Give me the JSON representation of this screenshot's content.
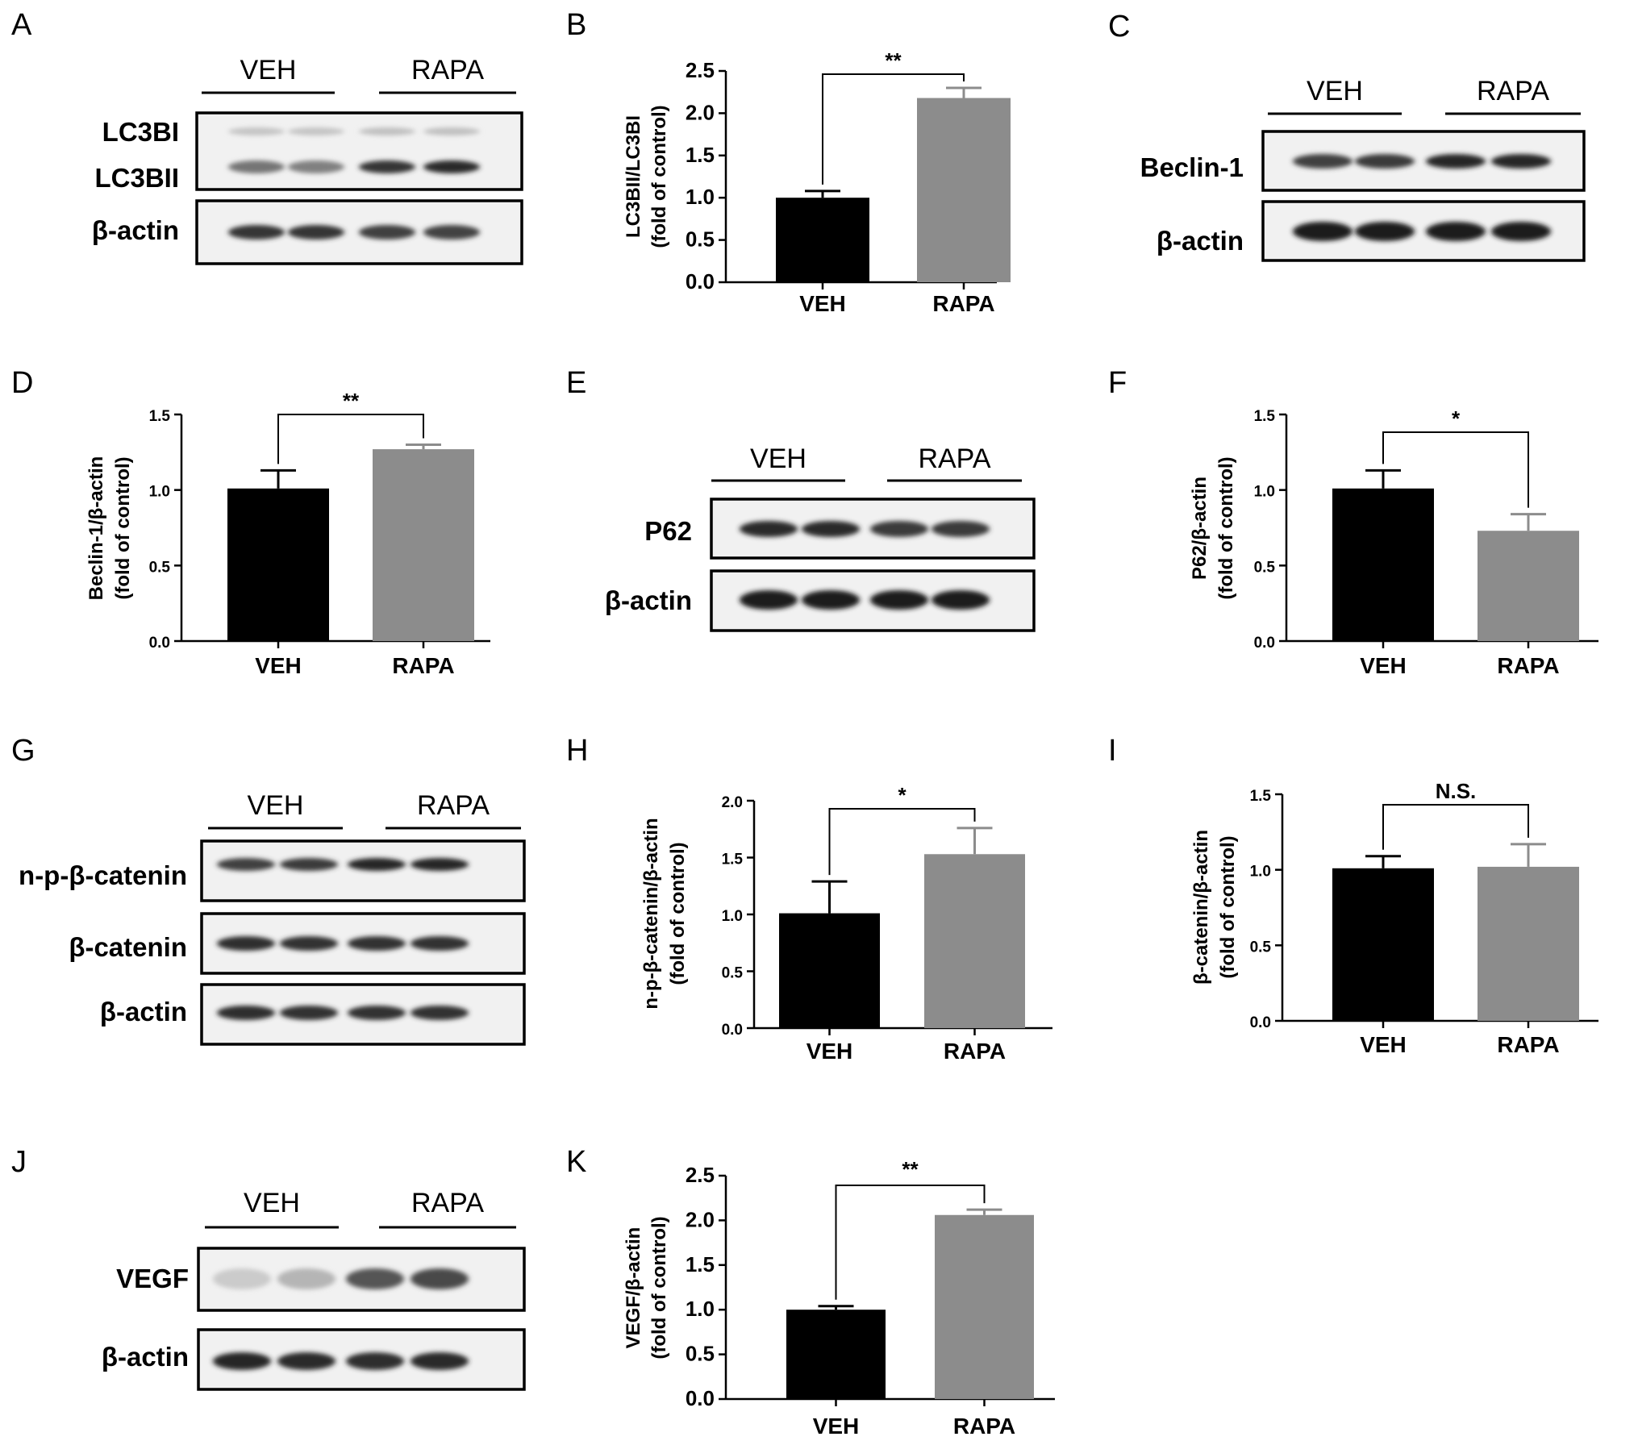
{
  "panel_letters": [
    "A",
    "B",
    "C",
    "D",
    "E",
    "F",
    "G",
    "H",
    "I",
    "J",
    "K"
  ],
  "blots": [
    {
      "id": "A",
      "groups": [
        "VEH",
        "RAPA"
      ],
      "rows": [
        {
          "labels": [
            "LC3BI",
            "LC3BII"
          ],
          "bands": [
            {
              "label": "LC3BI",
              "intensity": [
                0.18,
                0.18,
                0.2,
                0.2
              ]
            },
            {
              "label": "LC3BII",
              "intensity": [
                0.55,
                0.5,
                0.85,
                0.9
              ]
            }
          ]
        },
        {
          "labels": [
            "β-actin"
          ],
          "bands": [
            {
              "label": "β-actin",
              "intensity": [
                0.85,
                0.85,
                0.8,
                0.78
              ]
            }
          ]
        }
      ]
    },
    {
      "id": "C",
      "groups": [
        "VEH",
        "RAPA"
      ],
      "rows": [
        {
          "labels": [
            "Beclin-1"
          ],
          "bands": [
            {
              "label": "Beclin-1",
              "intensity": [
                0.8,
                0.82,
                0.92,
                0.92
              ]
            }
          ]
        },
        {
          "labels": [
            "β-actin"
          ],
          "bands": [
            {
              "label": "β-actin",
              "intensity": [
                0.95,
                0.95,
                0.95,
                0.95
              ]
            }
          ]
        }
      ]
    },
    {
      "id": "E",
      "groups": [
        "VEH",
        "RAPA"
      ],
      "rows": [
        {
          "labels": [
            "P62"
          ],
          "bands": [
            {
              "label": "P62",
              "intensity": [
                0.9,
                0.9,
                0.82,
                0.82
              ]
            }
          ]
        },
        {
          "labels": [
            "β-actin"
          ],
          "bands": [
            {
              "label": "β-actin",
              "intensity": [
                0.95,
                0.95,
                0.95,
                0.95
              ]
            }
          ]
        }
      ]
    },
    {
      "id": "G",
      "groups": [
        "VEH",
        "RAPA"
      ],
      "rows": [
        {
          "labels": [
            "n-p-β-catenin"
          ],
          "bands": [
            {
              "label": "n-p-β-catenin",
              "intensity": [
                0.8,
                0.82,
                0.92,
                0.92
              ]
            }
          ]
        },
        {
          "labels": [
            "β-catenin"
          ],
          "bands": [
            {
              "label": "β-catenin",
              "intensity": [
                0.88,
                0.86,
                0.86,
                0.86
              ]
            }
          ]
        },
        {
          "labels": [
            "β-actin"
          ],
          "bands": [
            {
              "label": "β-actin",
              "intensity": [
                0.88,
                0.86,
                0.86,
                0.86
              ]
            }
          ]
        }
      ]
    },
    {
      "id": "J",
      "groups": [
        "VEH",
        "RAPA"
      ],
      "rows": [
        {
          "labels": [
            "VEGF"
          ],
          "bands": [
            {
              "label": "VEGF",
              "intensity": [
                0.15,
                0.25,
                0.7,
                0.75
              ]
            }
          ]
        },
        {
          "labels": [
            "β-actin"
          ],
          "bands": [
            {
              "label": "β-actin",
              "intensity": [
                0.92,
                0.9,
                0.88,
                0.9
              ]
            }
          ]
        }
      ]
    }
  ],
  "chart_data": [
    {
      "id": "B",
      "type": "bar",
      "categories": [
        "VEH",
        "RAPA"
      ],
      "values": [
        1.0,
        2.18
      ],
      "errors": [
        0.08,
        0.12
      ],
      "colors": [
        "#000000",
        "#8c8c8c"
      ],
      "ylabel": [
        "LC3BII/LC3BI",
        "(fold of control)"
      ],
      "ylim": [
        0,
        2.5
      ],
      "yticks": [
        "0.0",
        "0.5",
        "1.0",
        "1.5",
        "2.0",
        "2.5"
      ],
      "significance": "**"
    },
    {
      "id": "D",
      "type": "bar",
      "categories": [
        "VEH",
        "RAPA"
      ],
      "values": [
        1.01,
        1.27
      ],
      "errors": [
        0.12,
        0.03
      ],
      "colors": [
        "#000000",
        "#8c8c8c"
      ],
      "ylabel": [
        "Beclin-1/β-actin",
        "(fold of control)"
      ],
      "ylim": [
        0,
        1.5
      ],
      "yticks": [
        "0.0",
        "0.5",
        "1.0",
        "1.5"
      ],
      "significance": "**"
    },
    {
      "id": "F",
      "type": "bar",
      "categories": [
        "VEH",
        "RAPA"
      ],
      "values": [
        1.01,
        0.73
      ],
      "errors": [
        0.12,
        0.11
      ],
      "colors": [
        "#000000",
        "#8c8c8c"
      ],
      "ylabel": [
        "P62/β-actin",
        "(fold of control)"
      ],
      "ylim": [
        0,
        1.5
      ],
      "yticks": [
        "0.0",
        "0.5",
        "1.0",
        "1.5"
      ],
      "significance": "*"
    },
    {
      "id": "H",
      "type": "bar",
      "categories": [
        "VEH",
        "RAPA"
      ],
      "values": [
        1.01,
        1.53
      ],
      "errors": [
        0.28,
        0.23
      ],
      "colors": [
        "#000000",
        "#8c8c8c"
      ],
      "ylabel": [
        "n-p-β-catenin/β-actin",
        "(fold of control)"
      ],
      "ylim": [
        0,
        2.0
      ],
      "yticks": [
        "0.0",
        "0.5",
        "1.0",
        "1.5",
        "2.0"
      ],
      "significance": "*"
    },
    {
      "id": "I",
      "type": "bar",
      "categories": [
        "VEH",
        "RAPA"
      ],
      "values": [
        1.01,
        1.02
      ],
      "errors": [
        0.08,
        0.15
      ],
      "colors": [
        "#000000",
        "#8c8c8c"
      ],
      "ylabel": [
        "β-catenin/β-actin",
        "(fold of control)"
      ],
      "ylim": [
        0,
        1.5
      ],
      "yticks": [
        "0.0",
        "0.5",
        "1.0",
        "1.5"
      ],
      "significance": "N.S."
    },
    {
      "id": "K",
      "type": "bar",
      "categories": [
        "VEH",
        "RAPA"
      ],
      "values": [
        1.0,
        2.06
      ],
      "errors": [
        0.04,
        0.06
      ],
      "colors": [
        "#000000",
        "#8c8c8c"
      ],
      "ylabel": [
        "VEGF/β-actin",
        "(fold of control)"
      ],
      "ylim": [
        0,
        2.5
      ],
      "yticks": [
        "0.0",
        "0.5",
        "1.0",
        "1.5",
        "2.0",
        "2.5"
      ],
      "significance": "**"
    }
  ]
}
